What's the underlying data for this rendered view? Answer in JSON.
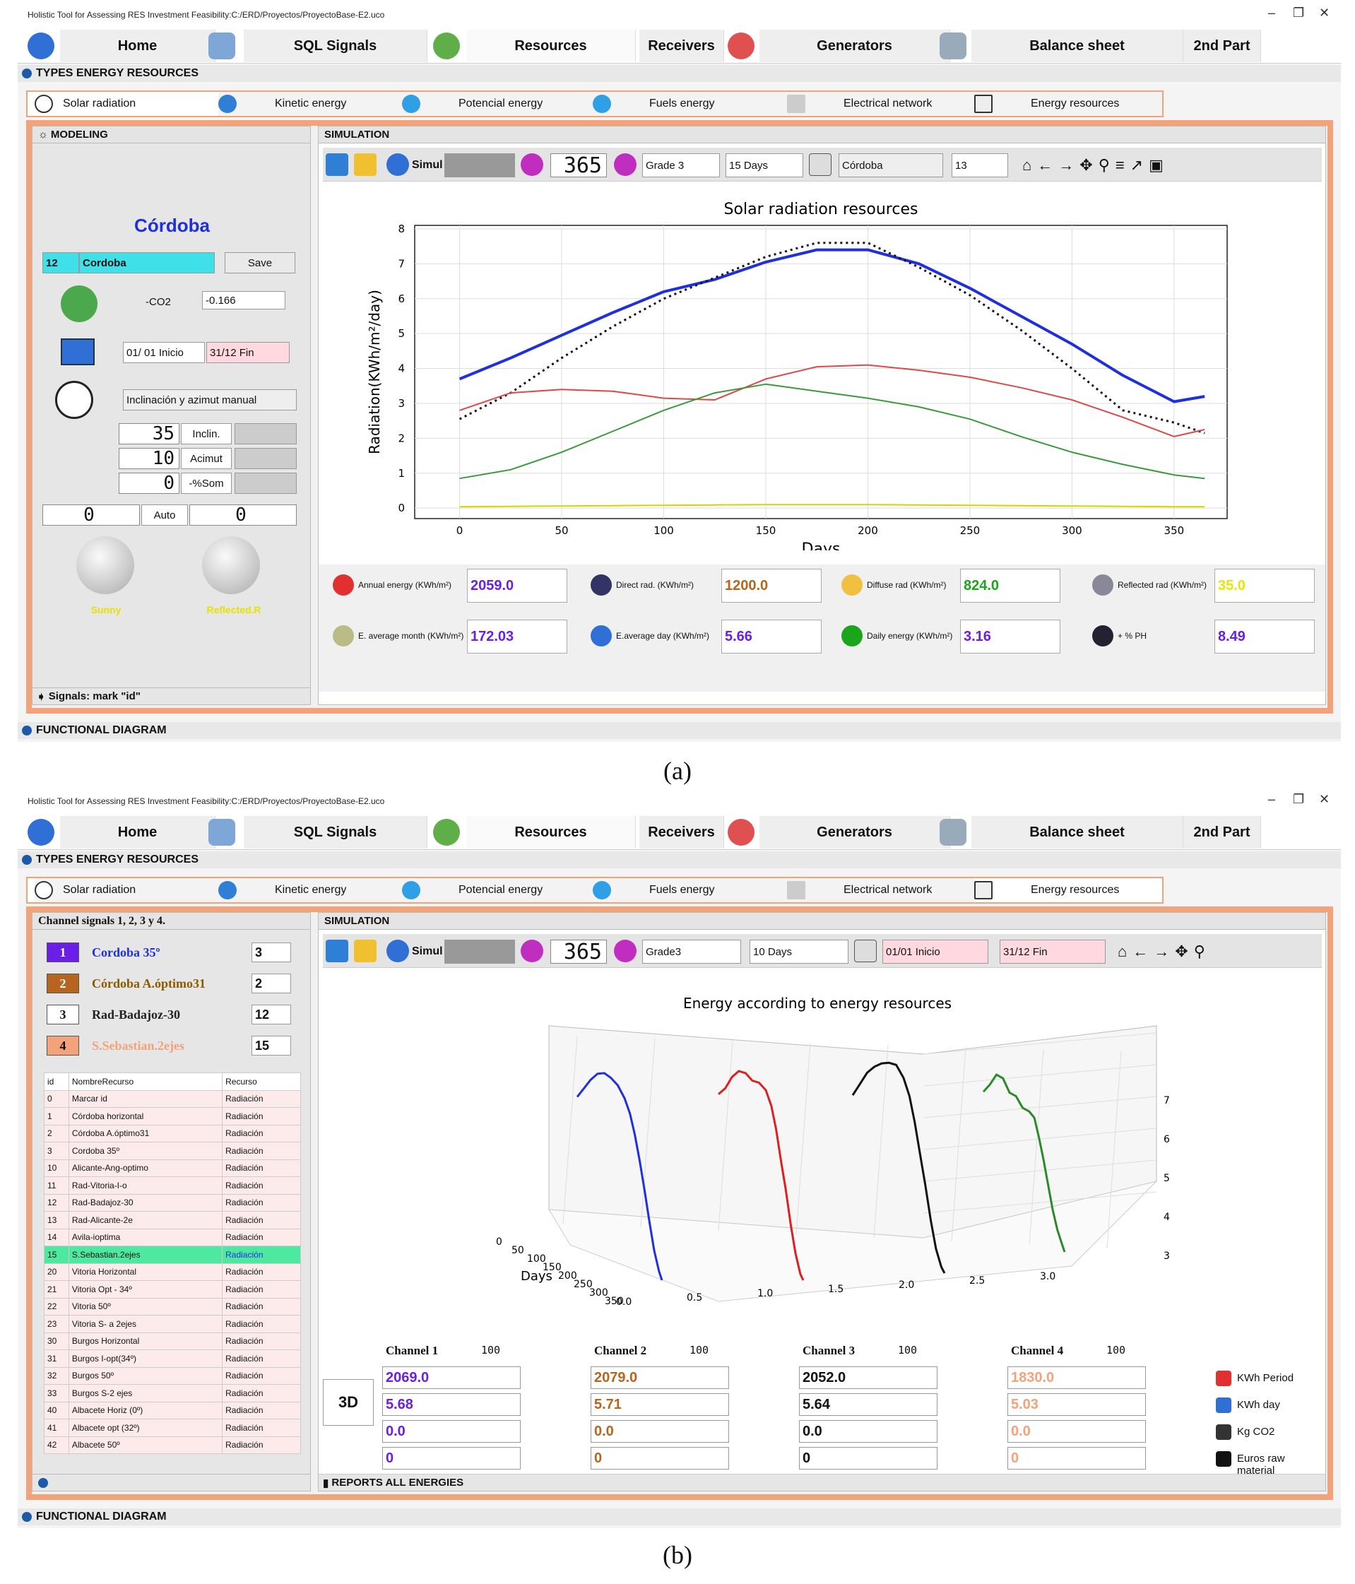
{
  "window_title": "Holistic Tool for Assessing RES Investment Feasibility:C:/ERD/Proyectos/ProyectoBase-E2.uco",
  "window_controls": {
    "min": "–",
    "max": "❐",
    "close": "✕"
  },
  "app_tabs": [
    "Home",
    "SQL Signals",
    "Resources",
    "Receivers",
    "Generators",
    "Balance sheet",
    "2nd Part"
  ],
  "section_types": "TYPES ENERGY RESOURCES",
  "resource_tabs": [
    "Solar radiation",
    "Kinetic energy",
    "Potencial energy",
    "Fuels energy",
    "Electrical network",
    "Energy resources"
  ],
  "section_functional": "FUNCTIONAL DIAGRAM",
  "panel_a": {
    "modeling_title": "MODELING",
    "city_title": "Córdoba",
    "id": "12",
    "name": "Cordoba",
    "save": "Save",
    "co2_label": "-CO2",
    "co2_value": "-0.166",
    "start": "01/ 01 Inicio",
    "end": "31/12  Fin",
    "mode": "Inclinación y azimut manual",
    "inclin_value": "35",
    "inclin_label": "Inclin.",
    "azimut_value": "10",
    "azimut_label": "Acimut",
    "som_value": "0",
    "som_label": "-%Som",
    "left_value": "0",
    "auto": "Auto",
    "right_value": "0",
    "knob1": "Sunny",
    "knob2": "Reflected.R",
    "signals": "Signals: mark \"id\"",
    "simulation_title": "SIMULATION",
    "simul": "Simul",
    "days": "365",
    "grade": "Grade 3",
    "period": "15 Days",
    "city_sel": "Córdoba",
    "city_num": "13",
    "kpis": [
      {
        "label": "Annual energy (KWh/m²)",
        "value": "2059.0",
        "color": "#6a1ee8"
      },
      {
        "label": "Direct rad. (KWh/m²)",
        "value": "1200.0",
        "color": "#b5651d"
      },
      {
        "label": "Diffuse rad (KWh/m²)",
        "value": "824.0",
        "color": "#1aa51a"
      },
      {
        "label": "Reflected rad (KWh/m²)",
        "value": "35.0",
        "color": "#e6e600"
      },
      {
        "label": "E. average month (KWh/m²)",
        "value": "172.03",
        "color": "#6a1ee8"
      },
      {
        "label": "E.average day (KWh/m²)",
        "value": "5.66",
        "color": "#6a1ee8"
      },
      {
        "label": "Daily energy (KWh/m²)",
        "value": "3.16",
        "color": "#6a1ee8"
      },
      {
        "label": "+ % PH",
        "value": "8.49",
        "color": "#6a1ee8"
      }
    ]
  },
  "chart_a_info": {
    "title": "Solar radiation resources",
    "xlabel": "Days",
    "ylabel": "Radiation(KWh/m²/day)"
  },
  "chart_data": [
    {
      "type": "line",
      "title": "Solar radiation resources",
      "xlabel": "Days",
      "ylabel": "Radiation(KWh/m²/day)",
      "xlim": [
        -22,
        376
      ],
      "ylim": [
        -0.3,
        8.1
      ],
      "xticks": [
        0,
        50,
        100,
        150,
        200,
        250,
        300,
        350
      ],
      "yticks": [
        0,
        1,
        2,
        3,
        4,
        5,
        6,
        7,
        8
      ],
      "grid": true,
      "x": [
        0,
        25,
        50,
        75,
        100,
        125,
        150,
        175,
        200,
        225,
        250,
        275,
        300,
        325,
        350,
        365
      ],
      "series": [
        {
          "color": "#1f2fe0",
          "style": "solid",
          "width": 4,
          "values": [
            3.7,
            4.3,
            4.95,
            5.6,
            6.2,
            6.55,
            7.05,
            7.4,
            7.4,
            7.0,
            6.3,
            5.5,
            4.7,
            3.8,
            3.05,
            3.2
          ]
        },
        {
          "color": "#111111",
          "style": "dotted",
          "width": 3,
          "values": [
            2.55,
            3.3,
            4.3,
            5.2,
            6.0,
            6.6,
            7.2,
            7.6,
            7.6,
            6.9,
            6.1,
            5.1,
            4.0,
            2.8,
            2.45,
            2.15
          ]
        },
        {
          "color": "#e04848",
          "style": "solid",
          "width": 2,
          "values": [
            2.8,
            3.3,
            3.4,
            3.35,
            3.15,
            3.1,
            3.7,
            4.05,
            4.1,
            3.95,
            3.75,
            3.45,
            3.1,
            2.6,
            2.05,
            2.25
          ]
        },
        {
          "color": "#3a9a3a",
          "style": "solid",
          "width": 2,
          "values": [
            0.85,
            1.1,
            1.6,
            2.2,
            2.8,
            3.3,
            3.55,
            3.35,
            3.15,
            2.9,
            2.55,
            2.05,
            1.6,
            1.25,
            0.95,
            0.85
          ]
        },
        {
          "color": "#d4d400",
          "style": "solid",
          "width": 2,
          "values": [
            0.04,
            0.05,
            0.06,
            0.07,
            0.08,
            0.09,
            0.1,
            0.1,
            0.1,
            0.09,
            0.08,
            0.07,
            0.06,
            0.05,
            0.04,
            0.04
          ]
        }
      ]
    },
    {
      "type": "line",
      "title": "Energy according to energy resources",
      "xlabel": "Days",
      "x": [
        0,
        25,
        50,
        75,
        100,
        125,
        150,
        175,
        200,
        225,
        250,
        275,
        300,
        325,
        350,
        365
      ],
      "day_ticks": [
        0,
        50,
        100,
        150,
        200,
        250,
        300,
        350
      ],
      "channel_ticks": [
        "0.0",
        "0.5",
        "1.0",
        "1.5",
        "2.0",
        "2.5",
        "3.0"
      ],
      "z_ticks": [
        3,
        4,
        5,
        6,
        7
      ],
      "series": [
        {
          "name": "Cordoba 35º",
          "color": "#1f2fe0",
          "values": [
            4.2,
            4.9,
            5.6,
            6.2,
            6.6,
            6.8,
            6.9,
            6.8,
            6.6,
            6.2,
            5.6,
            4.9,
            4.1,
            3.4,
            3.0,
            2.9
          ]
        },
        {
          "name": "Córdoba A.óptimo31",
          "color": "#e01e1e",
          "values": [
            4.3,
            4.9,
            5.7,
            6.3,
            6.6,
            6.7,
            7.0,
            7.1,
            6.9,
            6.4,
            5.6,
            4.9,
            4.0,
            3.3,
            2.9,
            2.9
          ]
        },
        {
          "name": "Rad-Badajoz-30",
          "color": "#111111",
          "values": [
            4.0,
            4.8,
            5.6,
            6.2,
            6.7,
            7.1,
            7.4,
            7.3,
            7.0,
            6.4,
            5.6,
            4.8,
            3.9,
            3.2,
            2.9,
            2.9
          ]
        },
        {
          "name": "S.Sebastian.2ejes",
          "color": "#2a8a2a",
          "values": [
            4.0,
            4.6,
            5.3,
            5.5,
            5.3,
            5.5,
            5.4,
            5.6,
            5.7,
            5.3,
            4.8,
            4.2,
            3.6,
            3.2,
            3.0,
            2.9
          ]
        }
      ]
    }
  ],
  "panel_b": {
    "channel_header": "Channel signals 1,  2,  3 y 4.",
    "channels": [
      {
        "num": "1",
        "name": "Cordoba 35º",
        "spin": "3",
        "bg": "#6a1ee8",
        "fg": "#1f2fe0",
        "numcolor": "#fff"
      },
      {
        "num": "2",
        "name": "Córdoba A.óptimo31",
        "spin": "2",
        "bg": "#b5651d",
        "fg": "#8a5a00",
        "numcolor": "#fff"
      },
      {
        "num": "3",
        "name": "Rad-Badajoz-30",
        "spin": "12",
        "bg": "#ffffff",
        "fg": "#222222",
        "numcolor": "#111"
      },
      {
        "num": "4",
        "name": "S.Sebastian.2ejes",
        "spin": "15",
        "bg": "#f4a27a",
        "fg": "#f4a27a",
        "numcolor": "#111"
      }
    ],
    "table_headers": [
      "id",
      "NombreRecurso",
      "Recurso"
    ],
    "table_rows": [
      [
        "0",
        "Marcar id",
        "Radiación"
      ],
      [
        "1",
        "Córdoba horizontal",
        "Radiación"
      ],
      [
        "2",
        "Córdoba A.óptimo31",
        "Radiación"
      ],
      [
        "3",
        "Cordoba 35º",
        "Radiación"
      ],
      [
        "10",
        "Alicante-Ang-optimo",
        "Radiación"
      ],
      [
        "11",
        "Rad-Vitoria-I-o",
        "Radiación"
      ],
      [
        "12",
        "Rad-Badajoz-30",
        "Radiación"
      ],
      [
        "13",
        "Rad-Alicante-2e",
        "Radiación"
      ],
      [
        "14",
        "Avila-ioptima",
        "Radiación"
      ],
      [
        "15",
        "S.Sebastian.2ejes",
        "Radiación"
      ],
      [
        "20",
        "Vitoria Horizontal",
        "Radiación"
      ],
      [
        "21",
        "Vitoria Opt - 34º",
        "Radiación"
      ],
      [
        "22",
        "Vitoria 50º",
        "Radiación"
      ],
      [
        "23",
        "Vitoria S- a 2ejes",
        "Radiación"
      ],
      [
        "30",
        "Burgos Horizontal",
        "Radiación"
      ],
      [
        "31",
        "Burgos I-opt(34º)",
        "Radiación"
      ],
      [
        "32",
        "Burgos 50º",
        "Radiación"
      ],
      [
        "33",
        "Burgos S-2 ejes",
        "Radiación"
      ],
      [
        "40",
        "Albacete Horiz (0º)",
        "Radiación"
      ],
      [
        "41",
        "Albacete opt (32º)",
        "Radiación"
      ],
      [
        "42",
        "Albacete 50º",
        "Radiación"
      ]
    ],
    "simulation_title": "SIMULATION",
    "simul": "Simul",
    "days": "365",
    "grade": "Grade3",
    "period": "10 Days",
    "start": "01/01 Inicio",
    "end": "31/12  Fin",
    "button_3d": "3D",
    "channel_cols": [
      {
        "label": "Channel 1",
        "color": "#6a1ee8",
        "vals": [
          "2069.0",
          "5.68",
          "0.0",
          "0"
        ]
      },
      {
        "label": "Channel 2",
        "color": "#b5651d",
        "vals": [
          "2079.0",
          "5.71",
          "0.0",
          "0"
        ]
      },
      {
        "label": "Channel 3",
        "color": "#111111",
        "vals": [
          "2052.0",
          "5.64",
          "0.0",
          "0"
        ]
      },
      {
        "label": "Channel 4",
        "color": "#f4a27a",
        "vals": [
          "1830.0",
          "5.03",
          "0.0",
          "0"
        ]
      }
    ],
    "counter": "100",
    "legend": [
      "KWh Period",
      "KWh day",
      "Kg CO2",
      "Euros raw material"
    ],
    "reports": "REPORTS ALL ENERGIES"
  },
  "caption_a": "(a)",
  "caption_b": "(b)"
}
